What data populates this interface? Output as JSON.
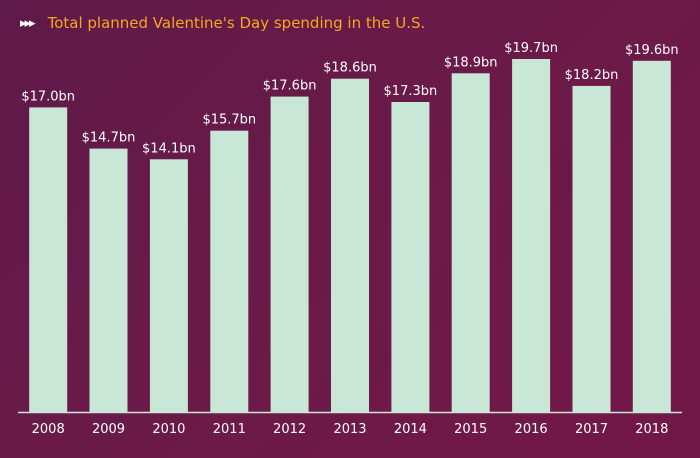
{
  "header": {
    "arrows": "▸▸▸",
    "title": "Total planned Valentine's Day spending in the U.S."
  },
  "colors": {
    "bar": "#c9e7d6",
    "axis": "#c9e7d6",
    "title": "#f6a81b",
    "text": "#ffffff"
  },
  "chart_data": {
    "type": "bar",
    "title": "Total planned Valentine's Day spending in the U.S.",
    "categories": [
      "2008",
      "2009",
      "2010",
      "2011",
      "2012",
      "2013",
      "2014",
      "2015",
      "2016",
      "2017",
      "2018"
    ],
    "values": [
      17.0,
      14.7,
      14.1,
      15.7,
      17.6,
      18.6,
      17.3,
      18.9,
      19.7,
      18.2,
      19.6
    ],
    "data_labels": [
      "$17.0bn",
      "$14.7bn",
      "$14.1bn",
      "$15.7bn",
      "$17.6bn",
      "$18.6bn",
      "$17.3bn",
      "$18.9bn",
      "$19.7bn",
      "$18.2bn",
      "$19.6bn"
    ],
    "unit": "bn USD",
    "ylim": [
      0,
      19.7
    ],
    "grid": false,
    "legend": "none"
  }
}
